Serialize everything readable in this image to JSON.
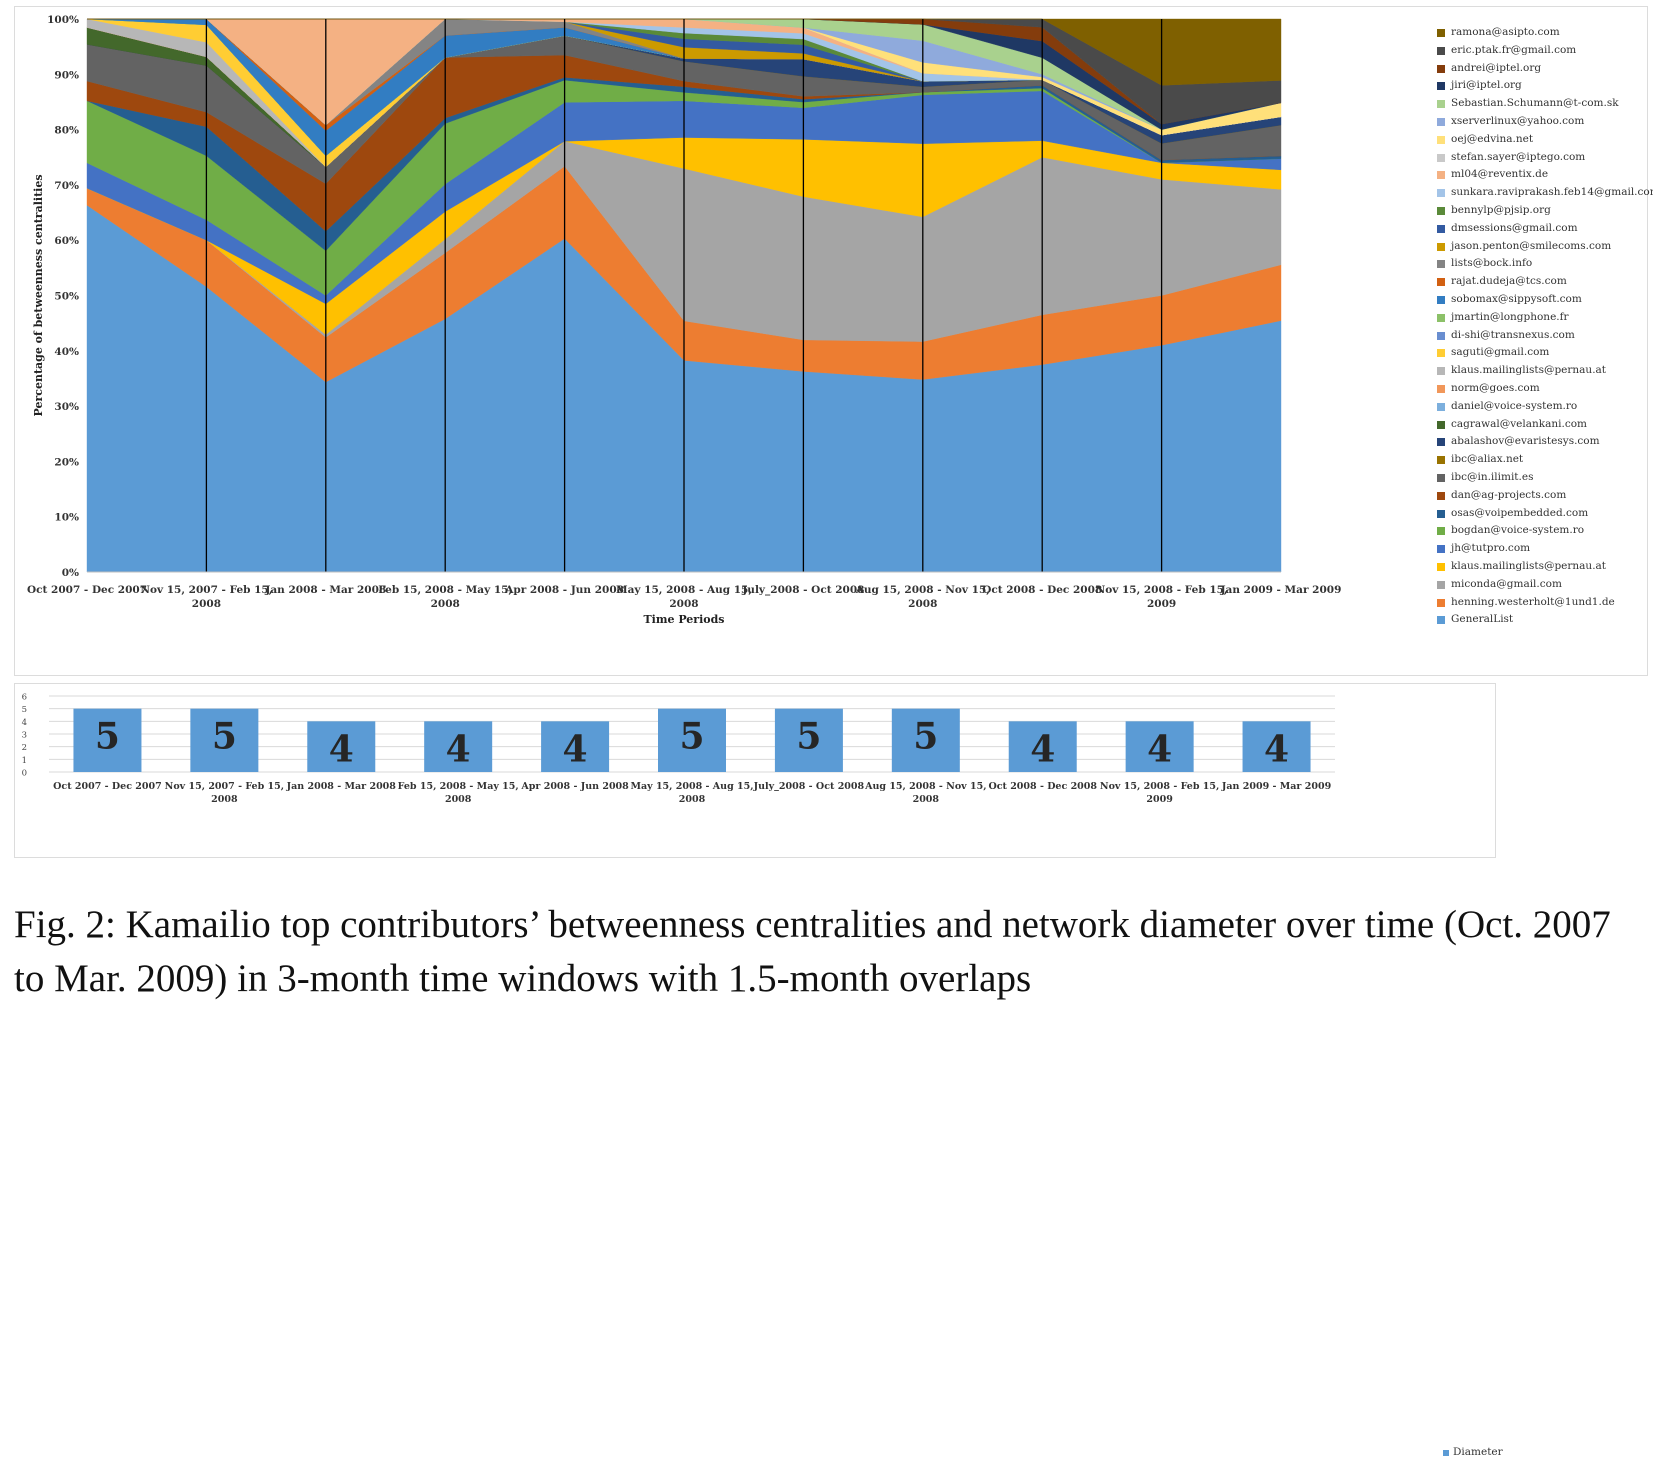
{
  "caption": "Fig. 2: Kamailio top contributors’ betweenness centralities and network diameter over time (Oct. 2007 to Mar. 2009) in 3-month time windows with 1.5-month overlaps",
  "chart_data": [
    {
      "type": "area",
      "stacked": true,
      "percent": true,
      "xlabel": "Time Periods",
      "ylabel": "Percentage of betweenness centralities",
      "ylim": [
        0,
        100
      ],
      "yticks": [
        "0%",
        "10%",
        "20%",
        "30%",
        "40%",
        "50%",
        "60%",
        "70%",
        "80%",
        "90%",
        "100%"
      ],
      "grid": false,
      "vertical_lines_at_periods": true,
      "legend_position": "right",
      "categories": [
        "Oct 2007 - Dec 2007",
        "Nov 15, 2007 - Feb 15, 2008",
        "Jan 2008 - Mar 2008",
        "Feb 15, 2008 - May 15, 2008",
        "Apr 2008 - Jun 2008",
        "May 15, 2008 - Aug 15, 2008",
        "July_2008 - Oct 2008",
        "Aug 15, 2008 - Nov 15, 2008",
        "Oct 2008 - Dec 2008",
        "Nov 15, 2008 - Feb 15, 2009",
        "Jan 2009 - Mar 2009"
      ],
      "series": [
        {
          "name": "GeneralList",
          "color": "#5b9bd5",
          "values": [
            65,
            49,
            34,
            46,
            60,
            37.5,
            35,
            35.5,
            37.5,
            41,
            45
          ]
        },
        {
          "name": "henning.westerholt@1und1.de",
          "color": "#ed7d31",
          "values": [
            3,
            8,
            8,
            12,
            13,
            7,
            5.5,
            7,
            9,
            9,
            10
          ]
        },
        {
          "name": "miconda@gmail.com",
          "color": "#a5a5a5",
          "values": [
            0,
            0,
            0.5,
            2.5,
            4.5,
            27,
            25,
            23,
            28.5,
            21,
            13.5
          ]
        },
        {
          "name": "klaus.mailinglists@pernau.at",
          "color": "#ffc000",
          "values": [
            0,
            0,
            5.5,
            5,
            0,
            5.5,
            10,
            13.5,
            3,
            3,
            3.5
          ]
        },
        {
          "name": "jh@tutpro.com",
          "color": "#4472c4",
          "values": [
            4.5,
            3.5,
            1.5,
            5,
            7,
            6.5,
            5.5,
            9,
            9,
            0,
            2
          ]
        },
        {
          "name": "bogdan@voice-system.ro",
          "color": "#70ad47",
          "values": [
            11,
            11,
            8,
            11,
            4,
            1.5,
            1,
            0.5,
            0.5,
            0,
            0
          ]
        },
        {
          "name": "osas@voipembedded.com",
          "color": "#255e91",
          "values": [
            0,
            5,
            3.5,
            1,
            0.5,
            1,
            0.5,
            0,
            0.5,
            0.5,
            0.5
          ]
        },
        {
          "name": "dan@ag-projects.com",
          "color": "#9e480e",
          "values": [
            3.5,
            2.5,
            8.5,
            11,
            4,
            1,
            0.5,
            0,
            0,
            0,
            0
          ]
        },
        {
          "name": "ibc@in.ilimit.es",
          "color": "#636363",
          "values": [
            6.5,
            8,
            3,
            0,
            3.5,
            3.5,
            3.5,
            1,
            1,
            3,
            5.5
          ]
        },
        {
          "name": "ibc@aliax.net",
          "color": "#997300",
          "values": [
            0,
            0,
            0,
            0,
            0,
            0,
            0,
            0,
            0,
            0,
            0
          ]
        },
        {
          "name": "abalashov@evaristesys.com",
          "color": "#264478",
          "values": [
            0,
            0,
            0,
            0,
            0,
            0.5,
            3,
            1,
            0,
            1.5,
            1.5
          ]
        },
        {
          "name": "cagrawal@velankani.com",
          "color": "#43682b",
          "values": [
            3,
            1.5,
            0,
            0,
            0,
            0,
            0,
            0,
            0,
            0,
            0
          ]
        },
        {
          "name": "daniel@voice-system.ro",
          "color": "#7cafdd",
          "values": [
            0,
            0,
            0,
            0,
            0,
            0,
            0,
            0,
            0,
            0,
            0
          ]
        },
        {
          "name": "norm@goes.com",
          "color": "#f1975a",
          "values": [
            0,
            0,
            0,
            0,
            0,
            0,
            0,
            0,
            0,
            0,
            0
          ]
        },
        {
          "name": "klaus.mailinglists@pernau.at",
          "color": "#b7b7b7",
          "values": [
            1.5,
            2.5,
            0,
            0,
            0,
            0,
            0,
            0,
            0,
            0,
            0
          ]
        },
        {
          "name": "saguti@gmail.com",
          "color": "#ffcd33",
          "values": [
            0,
            3,
            2,
            0,
            0,
            0,
            0,
            0,
            0,
            0,
            0
          ]
        },
        {
          "name": "di-shi@transnexus.com",
          "color": "#698ed0",
          "values": [
            0,
            0,
            0,
            0,
            0,
            0,
            0,
            0,
            0,
            0,
            0
          ]
        },
        {
          "name": "jmartin@longphone.fr",
          "color": "#8cc168",
          "values": [
            0,
            0,
            0,
            0,
            0,
            0,
            0,
            0,
            0,
            0,
            0
          ]
        },
        {
          "name": "sobomax@sippysoft.com",
          "color": "#327dc2",
          "values": [
            0,
            1,
            4.5,
            4,
            1.5,
            0,
            0,
            0,
            0,
            0,
            0
          ]
        },
        {
          "name": "rajat.dudeja@tcs.com",
          "color": "#d26012",
          "values": [
            0,
            0,
            1,
            0,
            0,
            0,
            0,
            0,
            0,
            0,
            0
          ]
        },
        {
          "name": "lists@bock.info",
          "color": "#848484",
          "values": [
            0,
            0,
            0,
            3,
            1,
            0,
            0,
            0,
            0,
            0,
            0
          ]
        },
        {
          "name": "jason.penton@smilecoms.com",
          "color": "#cc9a00",
          "values": [
            0,
            0,
            0,
            0,
            0,
            2,
            1,
            0,
            0,
            0,
            0
          ]
        },
        {
          "name": "dmsessions@gmail.com",
          "color": "#335aa1",
          "values": [
            0,
            0,
            0,
            0,
            0,
            1.5,
            1.5,
            0,
            0,
            0,
            0
          ]
        },
        {
          "name": "bennylp@pjsip.org",
          "color": "#5a8a39",
          "values": [
            0,
            0,
            0,
            0,
            0,
            1,
            1,
            0,
            0,
            0,
            0
          ]
        },
        {
          "name": "sunkara.raviprakash.feb14@gmail.com",
          "color": "#a3c4e8",
          "values": [
            0,
            0,
            0,
            0,
            0,
            1,
            1,
            1.5,
            0,
            0,
            0
          ]
        },
        {
          "name": "ml04@reventix.de",
          "color": "#f4b183",
          "values": [
            0,
            0,
            19,
            0,
            0.5,
            1.5,
            1,
            0,
            0,
            0,
            0
          ]
        },
        {
          "name": "stefan.sayer@iptego.com",
          "color": "#c9c9c9",
          "values": [
            0,
            0,
            0,
            0,
            0,
            0,
            0,
            0,
            0,
            0,
            0
          ]
        },
        {
          "name": "oej@edvina.net",
          "color": "#ffe07a",
          "values": [
            0,
            0,
            0,
            0,
            0,
            0,
            0,
            2,
            0.5,
            1,
            2.5
          ]
        },
        {
          "name": "xserverlinux@yahoo.com",
          "color": "#8faadc",
          "values": [
            0,
            0,
            0,
            0,
            0,
            0,
            0,
            4,
            0.5,
            0,
            0
          ]
        },
        {
          "name": "Sebastian.Schumann@t-com.sk",
          "color": "#a9d18e",
          "values": [
            0,
            0,
            0,
            0,
            0,
            0,
            1.5,
            3,
            3,
            0,
            0
          ]
        },
        {
          "name": "jiri@iptel.org",
          "color": "#1f3864",
          "values": [
            0,
            0,
            0,
            0,
            0,
            0,
            0,
            0,
            3,
            1,
            0
          ]
        },
        {
          "name": "andrei@iptel.org",
          "color": "#843c0c",
          "values": [
            0,
            0,
            0,
            0,
            0,
            0,
            0,
            1,
            2.5,
            0,
            0
          ]
        },
        {
          "name": "eric.ptak.fr@gmail.com",
          "color": "#4a4a4a",
          "values": [
            0,
            0,
            0,
            0,
            0,
            0,
            0,
            0,
            1.5,
            7,
            4
          ]
        },
        {
          "name": "ramona@asipto.com",
          "color": "#7f6000",
          "values": [
            0,
            0,
            0,
            0,
            0,
            0,
            0,
            0,
            0,
            12,
            11
          ]
        }
      ]
    },
    {
      "type": "bar",
      "categories": [
        "Oct 2007 - Dec 2007",
        "Nov 15, 2007 - Feb 15, 2008",
        "Jan 2008 - Mar 2008",
        "Feb 15, 2008 - May 15, 2008",
        "Apr 2008 - Jun 2008",
        "May 15, 2008 - Aug 15, 2008",
        "July_2008 - Oct 2008",
        "Aug 15, 2008 - Nov 15, 2008",
        "Oct 2008 - Dec 2008",
        "Nov 15, 2008 - Feb 15, 2009",
        "Jan 2009 - Mar 2009"
      ],
      "series": [
        {
          "name": "Diameter",
          "color": "#5b9bd5",
          "values": [
            5,
            5,
            4,
            4,
            4,
            5,
            5,
            5,
            4,
            4,
            4
          ]
        }
      ],
      "ylim": [
        0,
        6
      ],
      "yticks": [
        "0",
        "1",
        "2",
        "3",
        "4",
        "5",
        "6"
      ],
      "grid": true,
      "data_labels": true,
      "legend_position": "right"
    }
  ]
}
